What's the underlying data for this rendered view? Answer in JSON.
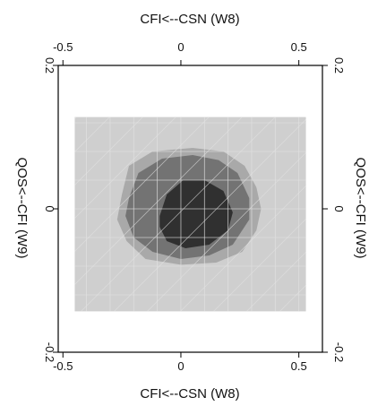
{
  "chart_data": {
    "type": "heatmap",
    "title": "",
    "xlabel": "CFI<--CSN   (W8)",
    "ylabel": "QOS<--CFI   (W9)",
    "xlim": [
      -0.52,
      0.6
    ],
    "ylim": [
      -0.2,
      0.2
    ],
    "x_ticks": [
      "-0.5",
      "0",
      "0.5"
    ],
    "y_ticks": [
      "-0.2",
      "0",
      "0.2"
    ],
    "x_tick_values": [
      -0.5,
      0,
      0.5
    ],
    "y_tick_values": [
      -0.2,
      0,
      0.2
    ],
    "grid": true,
    "data_extent": {
      "x": [
        -0.45,
        0.53
      ],
      "y": [
        -0.143,
        0.128
      ]
    },
    "colors": {
      "background": "#cfcfcf",
      "level1": "#a9a9a9",
      "level2": "#737373",
      "level3": "#303030",
      "grid": "#e2e2e2"
    },
    "regions": [
      {
        "level": 1,
        "points": [
          [
            -0.25,
            0.02
          ],
          [
            -0.22,
            0.06
          ],
          [
            -0.12,
            0.08
          ],
          [
            0.05,
            0.085
          ],
          [
            0.18,
            0.08
          ],
          [
            0.27,
            0.06
          ],
          [
            0.32,
            0.03
          ],
          [
            0.34,
            0.0
          ],
          [
            0.32,
            -0.03
          ],
          [
            0.26,
            -0.06
          ],
          [
            0.15,
            -0.075
          ],
          [
            0.0,
            -0.078
          ],
          [
            -0.15,
            -0.07
          ],
          [
            -0.23,
            -0.045
          ],
          [
            -0.27,
            -0.015
          ]
        ]
      },
      {
        "level": 2,
        "points": [
          [
            -0.22,
            0.015
          ],
          [
            -0.18,
            0.05
          ],
          [
            -0.08,
            0.07
          ],
          [
            0.05,
            0.075
          ],
          [
            0.16,
            0.068
          ],
          [
            0.24,
            0.05
          ],
          [
            0.29,
            0.015
          ],
          [
            0.29,
            -0.015
          ],
          [
            0.22,
            -0.05
          ],
          [
            0.12,
            -0.065
          ],
          [
            0.0,
            -0.07
          ],
          [
            -0.12,
            -0.06
          ],
          [
            -0.2,
            -0.04
          ],
          [
            -0.235,
            -0.01
          ]
        ]
      },
      {
        "level": 3,
        "points": [
          [
            -0.09,
            -0.01
          ],
          [
            -0.06,
            0.02
          ],
          [
            0.01,
            0.04
          ],
          [
            0.1,
            0.04
          ],
          [
            0.18,
            0.025
          ],
          [
            0.22,
            -0.005
          ],
          [
            0.2,
            -0.03
          ],
          [
            0.12,
            -0.05
          ],
          [
            0.02,
            -0.055
          ],
          [
            -0.06,
            -0.045
          ],
          [
            -0.09,
            -0.025
          ]
        ]
      }
    ]
  }
}
